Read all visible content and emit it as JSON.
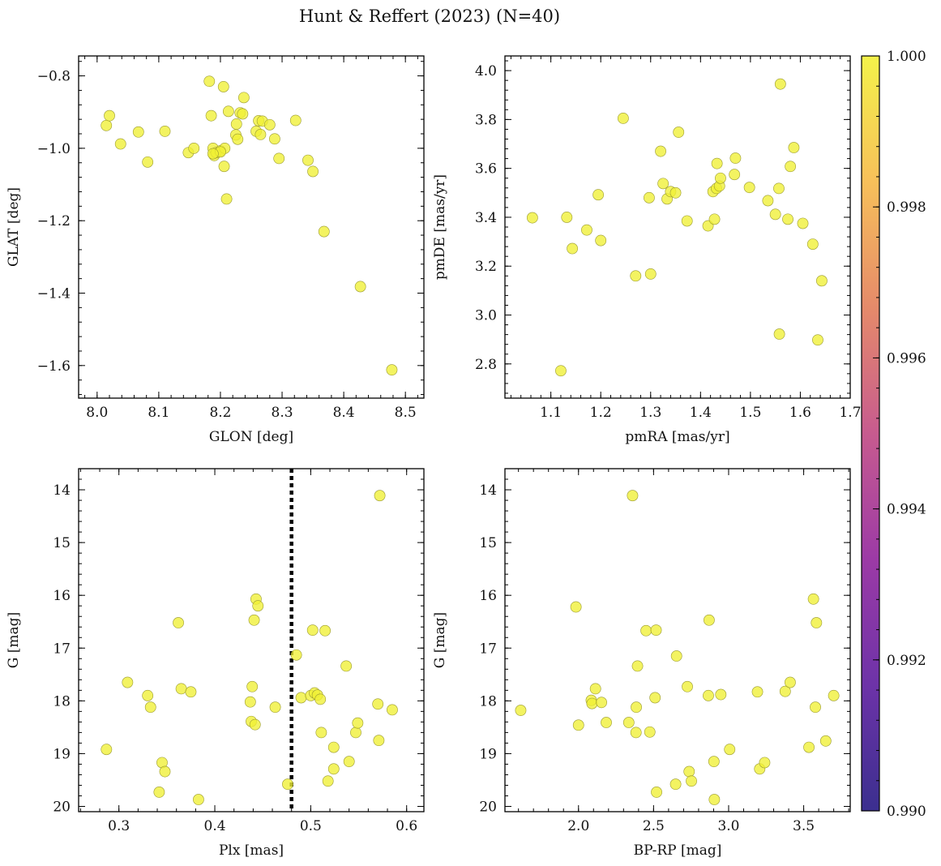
{
  "chart_data": {
    "title": "Hunt & Reffert (2023) (N=40)",
    "point_color": "#f0f034",
    "colorbar": {
      "min": 0.99,
      "max": 1.0,
      "ticks": [
        "0.990",
        "0.992",
        "0.994",
        "0.996",
        "0.998",
        "1.000"
      ],
      "colormap": "plasma",
      "stops": [
        "#3b2f8f",
        "#6d33a8",
        "#9c3aa6",
        "#c75b8f",
        "#e58a6a",
        "#f7c05a",
        "#f4f24a"
      ]
    },
    "panels": [
      {
        "id": "glon-glat",
        "type": "scatter",
        "xlabel": "GLON [deg]",
        "ylabel": "GLAT [deg]",
        "xlim": [
          7.97,
          8.53
        ],
        "ylim": [
          -1.69,
          -0.745
        ],
        "invert_y": false,
        "xticks": [
          "8.0",
          "8.1",
          "8.2",
          "8.3",
          "8.4",
          "8.5"
        ],
        "yticks": [
          "-1.6",
          "-1.4",
          "-1.2",
          "-1.0",
          "-0.8"
        ],
        "points": [
          [
            8.015,
            -0.937
          ],
          [
            8.02,
            -0.91
          ],
          [
            8.038,
            -0.988
          ],
          [
            8.067,
            -0.955
          ],
          [
            8.082,
            -1.038
          ],
          [
            8.11,
            -0.953
          ],
          [
            8.148,
            -1.012
          ],
          [
            8.157,
            -1.0
          ],
          [
            8.182,
            -0.815
          ],
          [
            8.185,
            -0.91
          ],
          [
            8.188,
            -1.0
          ],
          [
            8.19,
            -1.02
          ],
          [
            8.193,
            -1.012
          ],
          [
            8.2,
            -1.007
          ],
          [
            8.205,
            -0.83
          ],
          [
            8.206,
            -1.05
          ],
          [
            8.207,
            -1.0
          ],
          [
            8.21,
            -1.14
          ],
          [
            8.213,
            -0.898
          ],
          [
            8.225,
            -0.963
          ],
          [
            8.226,
            -0.933
          ],
          [
            8.228,
            -0.975
          ],
          [
            8.232,
            -0.902
          ],
          [
            8.236,
            -0.905
          ],
          [
            8.238,
            -0.86
          ],
          [
            8.258,
            -0.953
          ],
          [
            8.262,
            -0.924
          ],
          [
            8.265,
            -0.962
          ],
          [
            8.268,
            -0.925
          ],
          [
            8.28,
            -0.935
          ],
          [
            8.288,
            -0.974
          ],
          [
            8.295,
            -1.028
          ],
          [
            8.322,
            -0.923
          ],
          [
            8.342,
            -1.033
          ],
          [
            8.35,
            -1.064
          ],
          [
            8.368,
            -1.23
          ],
          [
            8.427,
            -1.382
          ],
          [
            8.478,
            -1.612
          ],
          [
            8.2,
            -1.01
          ],
          [
            8.188,
            -1.015
          ]
        ]
      },
      {
        "id": "pmra-pmde",
        "type": "scatter",
        "xlabel": "pmRA [mas/yr]",
        "ylabel": "pmDE [mas/yr]",
        "xlim": [
          1.008,
          1.7
        ],
        "ylim": [
          2.66,
          4.06
        ],
        "invert_y": false,
        "xticks": [
          "1.1",
          "1.2",
          "1.3",
          "1.4",
          "1.5",
          "1.6",
          "1.7"
        ],
        "yticks": [
          "2.8",
          "3.0",
          "3.2",
          "3.4",
          "3.6",
          "3.8",
          "4.0"
        ],
        "points": [
          [
            1.063,
            3.398
          ],
          [
            1.12,
            2.772
          ],
          [
            1.132,
            3.4
          ],
          [
            1.143,
            3.272
          ],
          [
            1.172,
            3.348
          ],
          [
            1.195,
            3.492
          ],
          [
            1.2,
            3.305
          ],
          [
            1.245,
            3.805
          ],
          [
            1.27,
            3.16
          ],
          [
            1.297,
            3.48
          ],
          [
            1.3,
            3.168
          ],
          [
            1.32,
            3.67
          ],
          [
            1.325,
            3.538
          ],
          [
            1.333,
            3.475
          ],
          [
            1.34,
            3.505
          ],
          [
            1.35,
            3.5
          ],
          [
            1.356,
            3.748
          ],
          [
            1.373,
            3.385
          ],
          [
            1.415,
            3.365
          ],
          [
            1.425,
            3.505
          ],
          [
            1.428,
            3.392
          ],
          [
            1.432,
            3.518
          ],
          [
            1.433,
            3.62
          ],
          [
            1.438,
            3.528
          ],
          [
            1.44,
            3.56
          ],
          [
            1.468,
            3.575
          ],
          [
            1.47,
            3.642
          ],
          [
            1.498,
            3.522
          ],
          [
            1.535,
            3.468
          ],
          [
            1.55,
            3.412
          ],
          [
            1.557,
            3.518
          ],
          [
            1.558,
            2.922
          ],
          [
            1.56,
            3.945
          ],
          [
            1.575,
            3.392
          ],
          [
            1.58,
            3.608
          ],
          [
            1.587,
            3.685
          ],
          [
            1.605,
            3.375
          ],
          [
            1.625,
            3.29
          ],
          [
            1.635,
            2.898
          ],
          [
            1.643,
            3.14
          ]
        ]
      },
      {
        "id": "plx-g",
        "type": "scatter",
        "xlabel": "Plx [mas]",
        "ylabel": "G [mag]",
        "xlim": [
          0.258,
          0.618
        ],
        "ylim": [
          13.6,
          20.1
        ],
        "invert_y": true,
        "ref_line_x": 0.48,
        "xticks": [
          "0.3",
          "0.4",
          "0.5",
          "0.6"
        ],
        "yticks": [
          "14",
          "15",
          "16",
          "17",
          "18",
          "19",
          "20"
        ],
        "points": [
          [
            0.287,
            18.92
          ],
          [
            0.309,
            17.65
          ],
          [
            0.33,
            17.9
          ],
          [
            0.333,
            18.12
          ],
          [
            0.342,
            19.73
          ],
          [
            0.345,
            19.17
          ],
          [
            0.348,
            19.34
          ],
          [
            0.362,
            16.52
          ],
          [
            0.365,
            17.77
          ],
          [
            0.375,
            17.83
          ],
          [
            0.383,
            19.87
          ],
          [
            0.437,
            18.02
          ],
          [
            0.438,
            18.39
          ],
          [
            0.439,
            17.73
          ],
          [
            0.441,
            16.47
          ],
          [
            0.442,
            18.45
          ],
          [
            0.443,
            16.07
          ],
          [
            0.445,
            16.2
          ],
          [
            0.463,
            18.12
          ],
          [
            0.476,
            19.58
          ],
          [
            0.485,
            17.13
          ],
          [
            0.49,
            17.94
          ],
          [
            0.5,
            17.9
          ],
          [
            0.502,
            16.66
          ],
          [
            0.504,
            17.85
          ],
          [
            0.507,
            17.89
          ],
          [
            0.51,
            17.97
          ],
          [
            0.511,
            18.6
          ],
          [
            0.515,
            16.67
          ],
          [
            0.518,
            19.52
          ],
          [
            0.524,
            18.88
          ],
          [
            0.524,
            19.29
          ],
          [
            0.537,
            17.34
          ],
          [
            0.54,
            19.15
          ],
          [
            0.547,
            18.6
          ],
          [
            0.549,
            18.42
          ],
          [
            0.57,
            18.06
          ],
          [
            0.571,
            18.75
          ],
          [
            0.572,
            14.11
          ],
          [
            0.585,
            18.17
          ]
        ]
      },
      {
        "id": "bprp-g",
        "type": "scatter",
        "xlabel": "BP-RP [mag]",
        "ylabel": "G [mag]",
        "xlim": [
          1.51,
          3.81
        ],
        "ylim": [
          13.6,
          20.1
        ],
        "invert_y": true,
        "xticks": [
          "2.0",
          "2.5",
          "3.0",
          "3.5"
        ],
        "yticks": [
          "14",
          "15",
          "16",
          "17",
          "18",
          "19",
          "20"
        ],
        "points": [
          [
            1.615,
            18.18
          ],
          [
            1.983,
            16.22
          ],
          [
            2.0,
            18.46
          ],
          [
            2.085,
            17.99
          ],
          [
            2.09,
            18.05
          ],
          [
            2.113,
            17.77
          ],
          [
            2.153,
            18.03
          ],
          [
            2.185,
            18.41
          ],
          [
            2.335,
            18.41
          ],
          [
            2.36,
            14.11
          ],
          [
            2.383,
            18.6
          ],
          [
            2.385,
            18.12
          ],
          [
            2.393,
            17.34
          ],
          [
            2.45,
            16.67
          ],
          [
            2.475,
            18.59
          ],
          [
            2.51,
            17.94
          ],
          [
            2.517,
            16.66
          ],
          [
            2.52,
            19.73
          ],
          [
            2.647,
            19.58
          ],
          [
            2.653,
            17.15
          ],
          [
            2.725,
            17.73
          ],
          [
            2.737,
            19.34
          ],
          [
            2.752,
            19.52
          ],
          [
            2.865,
            17.9
          ],
          [
            2.87,
            16.47
          ],
          [
            2.902,
            19.15
          ],
          [
            2.905,
            19.87
          ],
          [
            2.948,
            17.88
          ],
          [
            3.007,
            18.92
          ],
          [
            3.192,
            17.83
          ],
          [
            3.207,
            19.29
          ],
          [
            3.24,
            19.17
          ],
          [
            3.377,
            17.82
          ],
          [
            3.41,
            17.65
          ],
          [
            3.535,
            18.88
          ],
          [
            3.565,
            16.07
          ],
          [
            3.578,
            18.12
          ],
          [
            3.585,
            16.52
          ],
          [
            3.647,
            18.76
          ],
          [
            3.7,
            17.9
          ]
        ]
      }
    ]
  }
}
